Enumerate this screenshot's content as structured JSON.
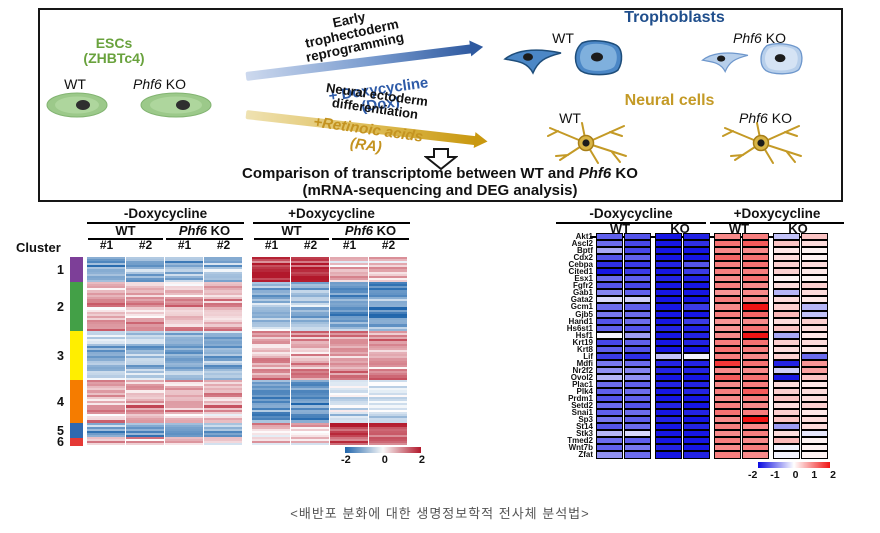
{
  "shared": {
    "wt": "WT",
    "phf6": "Phf6",
    "ko": " KO",
    "ko_plain": "KO",
    "minus_dox": "-Doxycycline",
    "plus_dox": "+Doxycycline",
    "cluster": "Cluster",
    "rep1": "#1",
    "rep2": "#2"
  },
  "diagram": {
    "esc_line1": "ESCs",
    "esc_line2": "(ZHBTc4)",
    "blue_line1": "Early",
    "blue_line2": "trophectoderm",
    "blue_line3": "reprogramming",
    "dox_line1": "+ Doxycycline",
    "dox_line2": "(Dox)",
    "neural_line1": "Neural ectoderm",
    "neural_line2": "differentiation",
    "ra_line1": "+Retinoic acids",
    "ra_line2": "(RA)",
    "trophoblasts_title": "Trophoblasts",
    "neural_title": "Neural cells",
    "comparison_pre": "Comparison of transcriptome between WT and ",
    "comparison_line2": "(mRNA-sequencing and DEG analysis)",
    "colors": {
      "esc_green": "#69a23d",
      "dox_blue": "#2e5ba8",
      "trophoblast_navy": "#1f4e8c",
      "neural_gold": "#c49a26"
    },
    "illustrations": {
      "esc": "green-oval-stem-cell",
      "trophoblast": "blue-trophoblast-cells",
      "neuron": "gold-branching-neuron",
      "flow": "hollow-down-arrow"
    }
  },
  "caption": "<배반포 분화에 대한 생명정보학적 전사체 분석법>",
  "chart_data": [
    {
      "type": "heatmap",
      "name": "clustered-deg-heatmap",
      "condition_groups": [
        "-Doxycycline WT",
        "-Doxycycline Phf6 KO",
        "+Doxycycline WT",
        "+Doxycycline Phf6 KO"
      ],
      "replicates": [
        "#1",
        "#2"
      ],
      "row_axis": "Cluster",
      "colorscale": {
        "palette": "blue-white-red",
        "min": -2,
        "max": 2,
        "ticks": [
          "-2",
          "0",
          "2"
        ]
      },
      "clusters": [
        {
          "id": "1",
          "color": "#7d3f98",
          "fraction": 0.13,
          "group_means": [
            -1.1,
            -0.9,
            1.8,
            0.55
          ]
        },
        {
          "id": "2",
          "color": "#43a047",
          "fraction": 0.26,
          "group_means": [
            0.75,
            0.7,
            -0.8,
            -1.25
          ]
        },
        {
          "id": "3",
          "color": "#ffee00",
          "fraction": 0.26,
          "group_means": [
            -0.8,
            -0.95,
            0.75,
            0.9
          ]
        },
        {
          "id": "4",
          "color": "#f57c00",
          "fraction": 0.225,
          "group_means": [
            0.75,
            0.65,
            -1.35,
            -0.3
          ]
        },
        {
          "id": "5",
          "color": "#3069b0",
          "fraction": 0.082,
          "group_means": [
            -1.1,
            -1.2,
            0.5,
            1.6
          ]
        },
        {
          "id": "6",
          "color": "#e53935",
          "fraction": 0.043,
          "group_means": [
            0.5,
            0.3,
            0.5,
            1.3
          ]
        }
      ]
    },
    {
      "type": "heatmap",
      "name": "trophectoderm-gene-heatmap",
      "condition_groups": [
        "-Doxycycline WT",
        "-Doxycycline KO",
        "+Doxycycline WT",
        "+Doxycycline KO"
      ],
      "columns_per_group": 2,
      "colorscale": {
        "palette": "blue-white-red",
        "min": -2,
        "max": 2,
        "ticks": [
          "-2",
          "-1",
          "0",
          "1",
          "2"
        ]
      },
      "genes": [
        "Akt1",
        "Ascl2",
        "Bptf",
        "Cdx2",
        "Cebpa",
        "Cited1",
        "Esx1",
        "Fgfr2",
        "Gab1",
        "Gata2",
        "Gcm1",
        "Gjb5",
        "Hand1",
        "Hs6st1",
        "Hsf1",
        "Krt19",
        "Krt8",
        "Lif",
        "Mdfi",
        "Nr2f2",
        "Ovol2",
        "Plac1",
        "Plk4",
        "Prdm1",
        "Setd2",
        "Snai1",
        "Sp3",
        "St14",
        "Stk3",
        "Tmed2",
        "Wnt7b",
        "Zfat"
      ],
      "values": [
        [
          -1.3,
          -1.4,
          -1.9,
          -1.8,
          1.0,
          1.1,
          -0.5,
          0.5
        ],
        [
          -1.2,
          -1.5,
          -1.9,
          -1.7,
          1.2,
          1.4,
          0.5,
          0.3
        ],
        [
          -0.7,
          -1.5,
          -1.9,
          -1.9,
          1.0,
          1.0,
          0.2,
          0.1
        ],
        [
          -1.4,
          -1.3,
          -1.9,
          -1.9,
          1.3,
          1.2,
          0.3,
          0.1
        ],
        [
          -1.7,
          -1.6,
          -1.8,
          -1.4,
          1.1,
          1.2,
          0.4,
          0.3
        ],
        [
          -1.9,
          -1.6,
          -1.9,
          -1.6,
          1.1,
          1.1,
          0.4,
          0.2
        ],
        [
          -1.2,
          -1.3,
          -1.8,
          -1.8,
          1.0,
          1.2,
          0.1,
          0.1
        ],
        [
          -1.4,
          -1.5,
          -1.9,
          -1.9,
          1.1,
          1.0,
          0.3,
          0.4
        ],
        [
          -1.0,
          -1.3,
          -1.9,
          -1.9,
          0.9,
          1.0,
          -0.6,
          0.3
        ],
        [
          -0.3,
          -0.4,
          -1.9,
          -1.9,
          1.1,
          1.0,
          0.3,
          0.2
        ],
        [
          -1.2,
          -1.3,
          -1.9,
          -1.6,
          1.0,
          2.0,
          0.4,
          -0.6
        ],
        [
          -1.1,
          -1.2,
          -1.9,
          -1.9,
          1.1,
          1.3,
          0.6,
          -0.5
        ],
        [
          -1.4,
          -1.2,
          -1.9,
          -1.6,
          0.9,
          1.0,
          0.3,
          0.4
        ],
        [
          -1.3,
          -1.4,
          -1.8,
          -1.8,
          0.9,
          1.2,
          0.5,
          0.3
        ],
        [
          -0.1,
          -0.8,
          -1.9,
          -1.8,
          1.0,
          2.0,
          -0.7,
          0.2
        ],
        [
          -1.5,
          -1.3,
          -1.9,
          -1.8,
          1.1,
          1.2,
          0.4,
          0.3
        ],
        [
          -1.3,
          -1.4,
          -1.9,
          -1.9,
          1.2,
          1.1,
          0.3,
          0.2
        ],
        [
          -1.6,
          -1.7,
          -0.5,
          -0.1,
          1.1,
          1.0,
          0.4,
          -1.2
        ],
        [
          -1.1,
          -1.2,
          -1.8,
          -1.8,
          1.7,
          1.2,
          -1.8,
          0.9
        ],
        [
          -0.9,
          -1.0,
          -1.8,
          -1.8,
          1.0,
          1.0,
          -0.4,
          0.8
        ],
        [
          -0.6,
          -0.9,
          -1.9,
          -1.9,
          1.4,
          1.2,
          -1.9,
          0.5
        ],
        [
          -1.2,
          -1.3,
          -1.8,
          -1.8,
          1.0,
          1.1,
          0.3,
          0.2
        ],
        [
          -1.3,
          -1.2,
          -1.9,
          -1.8,
          1.1,
          1.4,
          0.4,
          0.3
        ],
        [
          -1.4,
          -1.3,
          -1.9,
          -1.9,
          1.0,
          1.1,
          0.5,
          0.3
        ],
        [
          -1.2,
          -1.4,
          -1.8,
          -1.9,
          1.1,
          1.0,
          0.3,
          0.4
        ],
        [
          -1.3,
          -1.2,
          -1.9,
          -1.8,
          1.2,
          1.1,
          0.4,
          0.2
        ],
        [
          -1.1,
          -1.3,
          -1.8,
          -1.9,
          1.0,
          2.0,
          0.5,
          0.3
        ],
        [
          -1.4,
          -1.2,
          -1.9,
          -1.8,
          1.1,
          1.0,
          -0.8,
          0.3
        ],
        [
          -0.6,
          -0.3,
          -1.9,
          -1.9,
          1.0,
          1.1,
          0.3,
          -0.2
        ],
        [
          -1.2,
          -1.3,
          -1.9,
          -1.9,
          1.1,
          1.0,
          0.6,
          0.1
        ],
        [
          -1.3,
          -1.1,
          -1.8,
          -1.9,
          1.0,
          1.1,
          -0.1,
          0.1
        ],
        [
          -0.9,
          -1.2,
          -1.9,
          -1.8,
          1.1,
          1.0,
          -0.1,
          0.1
        ]
      ]
    }
  ]
}
